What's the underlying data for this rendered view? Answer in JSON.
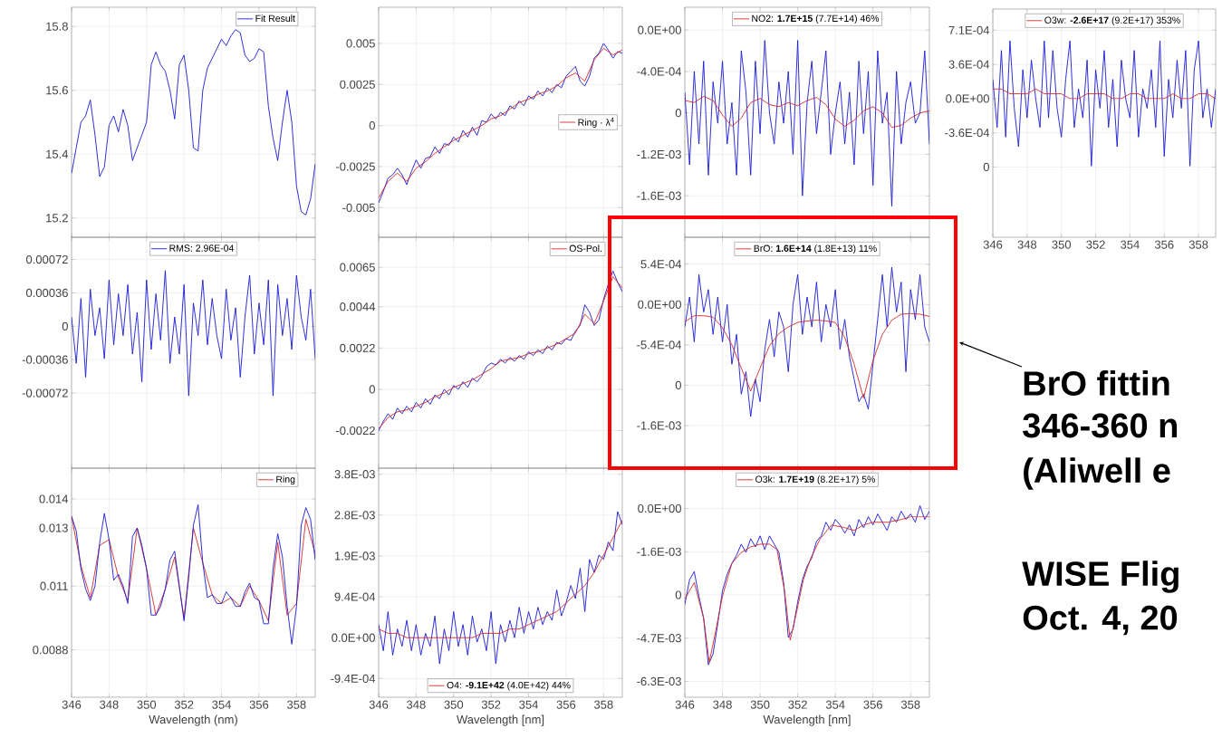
{
  "chart_data": [
    {
      "type": "line",
      "x": [
        346,
        346.25,
        346.5,
        346.75,
        347,
        347.25,
        347.5,
        347.75,
        348,
        348.25,
        348.5,
        348.75,
        349,
        349.25,
        349.5,
        349.75,
        350,
        350.25,
        350.5,
        350.75,
        351,
        351.25,
        351.5,
        351.75,
        352,
        352.25,
        352.5,
        352.75,
        353,
        353.25,
        353.5,
        353.75,
        354,
        354.25,
        354.5,
        354.75,
        355,
        355.25,
        355.5,
        355.75,
        356,
        356.25,
        356.5,
        356.75,
        357,
        357.25,
        357.5,
        357.75,
        358,
        358.25,
        358.5,
        358.75,
        359
      ],
      "xlim": [
        346,
        359
      ],
      "xticks": [
        346,
        348,
        350,
        352,
        354,
        356,
        358
      ],
      "ylim": [
        15.14,
        15.86
      ],
      "yticks": [
        15.2,
        15.4,
        15.6,
        15.8
      ],
      "grid": true,
      "legend": "top right",
      "tick_labels": "y",
      "series": [
        {
          "name": "Fit Result",
          "color": "#1a1ad2",
          "values": [
            15.34,
            15.42,
            15.5,
            15.52,
            15.57,
            15.46,
            15.33,
            15.36,
            15.49,
            15.52,
            15.47,
            15.54,
            15.49,
            15.38,
            15.42,
            15.46,
            15.5,
            15.68,
            15.72,
            15.68,
            15.66,
            15.6,
            15.51,
            15.68,
            15.71,
            15.6,
            15.42,
            15.41,
            15.6,
            15.67,
            15.7,
            15.73,
            15.76,
            15.74,
            15.77,
            15.79,
            15.78,
            15.71,
            15.69,
            15.7,
            15.73,
            15.72,
            15.55,
            15.45,
            15.38,
            15.5,
            15.6,
            15.5,
            15.3,
            15.22,
            15.21,
            15.26,
            15.37
          ]
        }
      ]
    },
    {
      "type": "line",
      "x": [
        346,
        346.25,
        346.5,
        346.75,
        347,
        347.25,
        347.5,
        347.75,
        348,
        348.25,
        348.5,
        348.75,
        349,
        349.25,
        349.5,
        349.75,
        350,
        350.25,
        350.5,
        350.75,
        351,
        351.25,
        351.5,
        351.75,
        352,
        352.25,
        352.5,
        352.75,
        353,
        353.25,
        353.5,
        353.75,
        354,
        354.25,
        354.5,
        354.75,
        355,
        355.25,
        355.5,
        355.75,
        356,
        356.25,
        356.5,
        356.75,
        357,
        357.25,
        357.5,
        357.75,
        358,
        358.25,
        358.5,
        358.75,
        359
      ],
      "xlim": [
        346,
        359
      ],
      "xticks": [
        346,
        348,
        350,
        352,
        354,
        356,
        358
      ],
      "ylim": [
        -0.0068,
        0.0072
      ],
      "yticks": [
        -0.005,
        -0.0025,
        0,
        0.0025,
        0.005
      ],
      "grid": true,
      "legend": "right",
      "tick_labels": "y",
      "series": [
        {
          "color": "#1a1ad2",
          "values": [
            -0.0047,
            -0.004,
            -0.0032,
            -0.003,
            -0.0026,
            -0.003,
            -0.0036,
            -0.0028,
            -0.0021,
            -0.0026,
            -0.002,
            -0.0019,
            -0.0013,
            -0.0017,
            -0.0011,
            -0.0012,
            -0.0007,
            -0.001,
            -0.0003,
            -0.0007,
            -0.0001,
            -0.0006,
            0.0003,
            0.0002,
            0.0007,
            0.0004,
            0.0008,
            0.0006,
            0.0012,
            0.001,
            0.0015,
            0.0012,
            0.0018,
            0.0016,
            0.0021,
            0.0018,
            0.0023,
            0.002,
            0.0025,
            0.0023,
            0.003,
            0.0033,
            0.0036,
            0.0027,
            0.0024,
            0.003,
            0.0041,
            0.0044,
            0.005,
            0.0046,
            0.0041,
            0.0045,
            0.0044
          ]
        },
        {
          "name": "Ring · λ$^{4}$",
          "color": "#d42a2a",
          "x": [
            346,
            346.5,
            347,
            347.5,
            348,
            348.5,
            349,
            349.5,
            350,
            350.5,
            351,
            351.5,
            352,
            352.5,
            353,
            353.5,
            354,
            354.5,
            355,
            355.5,
            356,
            356.5,
            357,
            357.5,
            358,
            358.5,
            359
          ],
          "values": [
            -0.0044,
            -0.0034,
            -0.0029,
            -0.0034,
            -0.0026,
            -0.0022,
            -0.0017,
            -0.0013,
            -0.0009,
            -0.0006,
            -0.0003,
            0,
            0.0004,
            0.0006,
            0.001,
            0.0014,
            0.0016,
            0.0019,
            0.0021,
            0.0024,
            0.0029,
            0.0032,
            0.0027,
            0.004,
            0.0047,
            0.0043,
            0.0046
          ]
        }
      ]
    },
    {
      "type": "line",
      "x": [
        346,
        346.25,
        346.5,
        346.75,
        347,
        347.25,
        347.5,
        347.75,
        348,
        348.25,
        348.5,
        348.75,
        349,
        349.25,
        349.5,
        349.75,
        350,
        350.25,
        350.5,
        350.75,
        351,
        351.25,
        351.5,
        351.75,
        352,
        352.25,
        352.5,
        352.75,
        353,
        353.25,
        353.5,
        353.75,
        354,
        354.25,
        354.5,
        354.75,
        355,
        355.25,
        355.5,
        355.75,
        356,
        356.25,
        356.5,
        356.75,
        357,
        357.25,
        357.5,
        357.75,
        358,
        358.25,
        358.5,
        358.75,
        359
      ],
      "xlim": [
        346,
        359
      ],
      "xticks": [
        346,
        348,
        350,
        352,
        354,
        356,
        358
      ],
      "ylim": [
        -0.002,
        0.00022
      ],
      "yticks": [
        {
          "value": 0,
          "label": "0.0E+00"
        },
        {
          "value": -0.0004,
          "label": "-4.0E-04"
        },
        {
          "value": -0.0008,
          "label": "0"
        },
        {
          "value": -0.0012,
          "label": "-1.2E-03"
        },
        {
          "value": -0.0016,
          "label": "-1.6E-03"
        }
      ],
      "grid": true,
      "legend": "top",
      "tick_labels": "y",
      "series": [
        {
          "color": "#1a1ad2",
          "values": [
            -0.0006,
            -0.0013,
            -0.0004,
            -0.0011,
            -0.0003,
            -0.0014,
            -0.0005,
            -0.0009,
            -0.0003,
            -0.0011,
            -0.0007,
            -0.0014,
            -0.0002,
            -0.0006,
            -0.0014,
            -0.0003,
            -0.001,
            -0.0001,
            -0.0008,
            -0.0011,
            -0.0005,
            -0.0009,
            -0.0004,
            -0.0012,
            -0.0001,
            -0.0016,
            -0.0007,
            -0.0003,
            -0.001,
            -0.0006,
            -0.0002,
            -0.0012,
            -0.0008,
            -0.0005,
            -0.0011,
            -0.0006,
            -0.0013,
            -0.0003,
            -0.001,
            -0.0004,
            -0.0015,
            -0.0002,
            -0.0009,
            -0.0006,
            -0.0017,
            -0.0004,
            -0.0011,
            -0.0007,
            -0.0005,
            -0.0009,
            -0.0008,
            -0.0002,
            -0.0011
          ]
        },
        {
          "name": "NO2: **1.7E+15** (7.7E+14) 46%",
          "color": "#d42a2a",
          "x": [
            346,
            346.5,
            347,
            347.5,
            348,
            348.5,
            349,
            349.5,
            350,
            350.5,
            351,
            351.5,
            352,
            352.5,
            353,
            353.5,
            354,
            354.5,
            355,
            355.5,
            356,
            356.5,
            357,
            357.5,
            358,
            358.5,
            359
          ],
          "values": [
            -0.00068,
            -0.0007,
            -0.00064,
            -0.00068,
            -0.00082,
            -0.00093,
            -0.00085,
            -0.0007,
            -0.00066,
            -0.00072,
            -0.00074,
            -0.0007,
            -0.00073,
            -0.00068,
            -0.00065,
            -0.00072,
            -0.00086,
            -0.00093,
            -0.00087,
            -0.00078,
            -0.00074,
            -0.0008,
            -0.00094,
            -0.00092,
            -0.00085,
            -0.0008,
            -0.00078
          ]
        }
      ]
    },
    {
      "type": "line",
      "x": [
        346,
        346.25,
        346.5,
        346.75,
        347,
        347.25,
        347.5,
        347.75,
        348,
        348.25,
        348.5,
        348.75,
        349,
        349.25,
        349.5,
        349.75,
        350,
        350.25,
        350.5,
        350.75,
        351,
        351.25,
        351.5,
        351.75,
        352,
        352.25,
        352.5,
        352.75,
        353,
        353.25,
        353.5,
        353.75,
        354,
        354.25,
        354.5,
        354.75,
        355,
        355.25,
        355.5,
        355.75,
        356,
        356.25,
        356.5,
        356.75,
        357,
        357.25,
        357.5,
        357.75,
        358,
        358.25,
        358.5,
        358.75,
        359
      ],
      "xlim": [
        346,
        359
      ],
      "xticks": [
        346,
        348,
        350,
        352,
        354,
        356,
        358
      ],
      "ylim": [
        -0.00144,
        0.00093
      ],
      "yticks": [
        {
          "value": 0.00071,
          "label": "7.1E-04"
        },
        {
          "value": 0.000355,
          "label": "3.6E-04"
        },
        {
          "value": 0,
          "label": "0.0E+00"
        },
        {
          "value": -0.000355,
          "label": "-3.6E-04"
        },
        {
          "value": -0.00071,
          "label": "0"
        }
      ],
      "grid": true,
      "legend": "top",
      "series": [
        {
          "color": "#1a1ad2",
          "values": [
            0.0002,
            -0.0003,
            0.0005,
            -0.0004,
            0.0006,
            -0.0001,
            -0.0005,
            0.0003,
            -0.0002,
            0.0004,
            0,
            -0.0003,
            0.0006,
            -0.0002,
            0.0005,
            -0.0001,
            -0.0004,
            0.0002,
            0.0006,
            -0.0003,
            0.0001,
            -0.0002,
            0.0004,
            -0.0007,
            0.0003,
            -0.0001,
            0.0005,
            -0.0003,
            0.0002,
            -0.0005,
            0.0004,
            0,
            -0.0002,
            0.0005,
            -0.0004,
            0.0001,
            -0.0001,
            0.0003,
            -0.0003,
            0.0006,
            -0.0006,
            0.0002,
            -0.0002,
            0.0004,
            -0.0001,
            0.0005,
            -0.0007,
            0.0003,
            0.0006,
            -0.0002,
            0.0001,
            -0.0003,
            0.0001
          ]
        },
        {
          "name": "O3w: **-2.6E+17** (9.2E+17) 353%",
          "color": "#d42a2a",
          "x": [
            346,
            346.5,
            347,
            347.5,
            348,
            348.5,
            349,
            349.5,
            350,
            350.5,
            351,
            351.5,
            352,
            352.5,
            353,
            353.5,
            354,
            354.5,
            355,
            355.5,
            356,
            356.5,
            357,
            357.5,
            358,
            358.5,
            359
          ],
          "values": [
            0.0001,
            0.0001,
            5e-05,
            5e-05,
            5e-05,
            0.0001,
            5e-05,
            5e-05,
            5e-05,
            0,
            0,
            5e-05,
            5e-05,
            5e-05,
            0,
            0,
            5e-05,
            5e-05,
            0,
            0,
            0,
            5e-05,
            0,
            0,
            5e-05,
            5e-05,
            0
          ]
        }
      ]
    },
    {
      "type": "line",
      "x": [
        346,
        346.25,
        346.5,
        346.75,
        347,
        347.25,
        347.5,
        347.75,
        348,
        348.25,
        348.5,
        348.75,
        349,
        349.25,
        349.5,
        349.75,
        350,
        350.25,
        350.5,
        350.75,
        351,
        351.25,
        351.5,
        351.75,
        352,
        352.25,
        352.5,
        352.75,
        353,
        353.25,
        353.5,
        353.75,
        354,
        354.25,
        354.5,
        354.75,
        355,
        355.25,
        355.5,
        355.75,
        356,
        356.25,
        356.5,
        356.75,
        357,
        357.25,
        357.5,
        357.75,
        358,
        358.25,
        358.5,
        358.75,
        359
      ],
      "xlim": [
        346,
        359
      ],
      "xticks": [
        346,
        348,
        350,
        352,
        354,
        356,
        358
      ],
      "ylim": [
        -0.00153,
        0.00096
      ],
      "yticks": [
        0.00072,
        0.00036,
        0,
        -0.00036,
        -0.00072
      ],
      "grid": true,
      "legend": "top",
      "tick_labels": "y",
      "series": [
        {
          "name": "RMS: 2.96E-04",
          "color": "#1a1ad2",
          "values": [
            0.0001,
            -0.0004,
            0.0003,
            -0.00055,
            0.0004,
            -0.0001,
            0.0002,
            -0.00035,
            0.0005,
            -0.0002,
            0.00035,
            -0.0001,
            0.00045,
            -0.0003,
            0.00015,
            -0.0006,
            0.0005,
            -0.00025,
            0.00035,
            -0.00015,
            0.0006,
            -0.0004,
            0.0001,
            -0.0003,
            0.00045,
            -0.00075,
            0.00025,
            -0.0001,
            0.0005,
            -0.0002,
            0.0003,
            -0.0001,
            -0.00035,
            0.0004,
            -0.00015,
            0.0002,
            -0.00055,
            0.0001,
            0.00055,
            -0.0003,
            0.00025,
            -0.0002,
            0.0005,
            -0.00075,
            0.00045,
            -0.0001,
            0.0003,
            -0.00025,
            0.00055,
            0.0001,
            -0.00015,
            0.0004,
            -0.00035
          ]
        }
      ]
    },
    {
      "type": "line",
      "x": [
        346,
        346.25,
        346.5,
        346.75,
        347,
        347.25,
        347.5,
        347.75,
        348,
        348.25,
        348.5,
        348.75,
        349,
        349.25,
        349.5,
        349.75,
        350,
        350.25,
        350.5,
        350.75,
        351,
        351.25,
        351.5,
        351.75,
        352,
        352.25,
        352.5,
        352.75,
        353,
        353.25,
        353.5,
        353.75,
        354,
        354.25,
        354.5,
        354.75,
        355,
        355.25,
        355.5,
        355.75,
        356,
        356.25,
        356.5,
        356.75,
        357,
        357.25,
        357.5,
        357.75,
        358,
        358.25,
        358.5,
        358.75,
        359
      ],
      "xlim": [
        346,
        359
      ],
      "xticks": [
        346,
        348,
        350,
        352,
        354,
        356,
        358
      ],
      "ylim": [
        -0.0042,
        0.0081
      ],
      "yticks": [
        0.0065,
        0.0044,
        0.0022,
        0,
        -0.0022
      ],
      "grid": true,
      "legend": "top right",
      "tick_labels": "y",
      "series": [
        {
          "color": "#1a1ad2",
          "values": [
            -0.0022,
            -0.0017,
            -0.0013,
            -0.0016,
            -0.001,
            -0.0013,
            -0.0009,
            -0.0012,
            -0.0007,
            -0.001,
            -0.0005,
            -0.0008,
            -0.0003,
            -0.0005,
            0,
            -0.0003,
            0.0002,
            0,
            0.0004,
            0.0001,
            0.0006,
            0.0004,
            0.0007,
            0.0012,
            0.0014,
            0.0013,
            0.0016,
            0.0014,
            0.0017,
            0.0015,
            0.0018,
            0.0016,
            0.002,
            0.0018,
            0.0021,
            0.0019,
            0.0023,
            0.0021,
            0.0025,
            0.0024,
            0.0027,
            0.0026,
            0.0031,
            0.0034,
            0.0045,
            0.0041,
            0.0034,
            0.0037,
            0.0048,
            0.0056,
            0.0063,
            0.0057,
            0.0052
          ]
        },
        {
          "name": "OS-Pol.",
          "color": "#d42a2a",
          "x": [
            346,
            346.5,
            347,
            347.5,
            348,
            348.5,
            349,
            349.5,
            350,
            350.5,
            351,
            351.5,
            352,
            352.5,
            353,
            353.5,
            354,
            354.5,
            355,
            355.5,
            356,
            356.5,
            357,
            357.5,
            358,
            358.5,
            359
          ],
          "values": [
            -0.0021,
            -0.0015,
            -0.0012,
            -0.0011,
            -0.0009,
            -0.0007,
            -0.0004,
            -0.0002,
            0.0001,
            0.0003,
            0.0005,
            0.0008,
            0.0011,
            0.0015,
            0.0016,
            0.0017,
            0.0019,
            0.002,
            0.0022,
            0.0024,
            0.0027,
            0.003,
            0.004,
            0.0035,
            0.0047,
            0.006,
            0.0054
          ]
        }
      ]
    },
    {
      "type": "line",
      "x": [
        346,
        346.25,
        346.5,
        346.75,
        347,
        347.25,
        347.5,
        347.75,
        348,
        348.25,
        348.5,
        348.75,
        349,
        349.25,
        349.5,
        349.75,
        350,
        350.25,
        350.5,
        350.75,
        351,
        351.25,
        351.5,
        351.75,
        352,
        352.25,
        352.5,
        352.75,
        353,
        353.25,
        353.5,
        353.75,
        354,
        354.25,
        354.5,
        354.75,
        355,
        355.25,
        355.5,
        355.75,
        356,
        356.25,
        356.5,
        356.75,
        357,
        357.25,
        357.5,
        357.75,
        358,
        358.25,
        358.5,
        358.75,
        359
      ],
      "xlim": [
        346,
        359
      ],
      "xticks": [
        346,
        348,
        350,
        352,
        354,
        356,
        358
      ],
      "ylim": [
        -0.00219,
        0.0009
      ],
      "yticks": [
        {
          "value": 0.00054,
          "label": "5.4E-04"
        },
        {
          "value": 0,
          "label": "0.0E+00"
        },
        {
          "value": -0.00054,
          "label": "-5.4E-04"
        },
        {
          "value": -0.00108,
          "label": "0"
        },
        {
          "value": -0.00162,
          "label": "-1.6E-03"
        }
      ],
      "grid": true,
      "legend": "top",
      "tick_labels": "y",
      "annotations": [
        "BrO fittin",
        "346-360 n",
        "(Aliwell e",
        "WISE Flig",
        "Oct. 4, 20"
      ],
      "series": [
        {
          "color": "#1a1ad2",
          "values": [
            -0.0003,
            0.0001,
            -0.0005,
            0.0004,
            -0.0001,
            0.0002,
            -0.0004,
            0.0001,
            -0.0005,
            0,
            -0.0008,
            -0.0004,
            -0.0012,
            -0.0009,
            -0.0015,
            -0.001,
            -0.0013,
            -0.0006,
            -0.0002,
            -0.0007,
            -0.0001,
            -0.0003,
            -0.0009,
            0,
            0.0004,
            -0.0004,
            0.0001,
            -0.0003,
            0.0003,
            -0.0005,
            0,
            -0.0003,
            0.0002,
            -0.0006,
            -0.0002,
            -0.0007,
            -0.001,
            -0.0013,
            -0.0012,
            -0.0014,
            -0.0008,
            -0.0002,
            0.0004,
            -0.0003,
            0.0005,
            -0.0001,
            0.0003,
            -0.0009,
            0.0002,
            -0.0002,
            0.0004,
            -0.0003,
            -0.0005
          ]
        },
        {
          "name": "BrO: **1.6E+14** (1.8E+13) 11%",
          "color": "#d42a2a",
          "x": [
            346,
            346.5,
            347,
            347.5,
            348,
            348.5,
            349,
            349.5,
            350,
            350.5,
            351,
            351.5,
            352,
            352.5,
            353,
            353.5,
            354,
            354.5,
            355,
            355.5,
            356,
            356.5,
            357,
            357.5,
            358,
            358.5,
            359
          ],
          "values": [
            -0.00023,
            -0.00015,
            -0.00015,
            -0.00017,
            -0.00031,
            -0.00054,
            -0.00085,
            -0.00116,
            -0.00085,
            -0.00055,
            -0.00039,
            -0.0003,
            -0.00024,
            -0.00022,
            -0.00021,
            -0.00022,
            -0.00024,
            -0.00044,
            -0.0008,
            -0.00125,
            -0.00075,
            -0.0004,
            -0.00021,
            -0.00013,
            -0.00012,
            -0.00013,
            -0.00016
          ]
        }
      ]
    },
    {
      "type": "line",
      "x": [
        346,
        346.25,
        346.5,
        346.75,
        347,
        347.25,
        347.5,
        347.75,
        348,
        348.25,
        348.5,
        348.75,
        349,
        349.25,
        349.5,
        349.75,
        350,
        350.25,
        350.5,
        350.75,
        351,
        351.25,
        351.5,
        351.75,
        352,
        352.25,
        352.5,
        352.75,
        353,
        353.25,
        353.5,
        353.75,
        354,
        354.25,
        354.5,
        354.75,
        355,
        355.25,
        355.5,
        355.75,
        356,
        356.25,
        356.5,
        356.75,
        357,
        357.25,
        357.5,
        357.75,
        358,
        358.25,
        358.5,
        358.75,
        359
      ],
      "xlim": [
        346,
        359
      ],
      "xticks": [
        346,
        348,
        350,
        352,
        354,
        356,
        358
      ],
      "xlabel": "Wavelength (nm)",
      "ylim": [
        0.00717,
        0.01506
      ],
      "yticks": [
        0.014,
        0.013,
        0.011,
        0.0088
      ],
      "grid": true,
      "legend": "top right",
      "series": [
        {
          "name": "Ring",
          "color": "#d42a2a",
          "x": [
            346,
            346.5,
            347,
            347.5,
            348,
            348.5,
            349,
            349.5,
            350,
            350.5,
            351,
            351.5,
            352,
            352.5,
            353,
            353.5,
            354,
            354.5,
            355,
            355.5,
            356,
            356.5,
            357,
            357.5,
            358,
            358.5,
            359
          ],
          "values": [
            0.0134,
            0.0117,
            0.0106,
            0.0124,
            0.0126,
            0.0113,
            0.0105,
            0.013,
            0.0116,
            0.01,
            0.0109,
            0.012,
            0.0099,
            0.013,
            0.0118,
            0.0107,
            0.0104,
            0.0106,
            0.0103,
            0.011,
            0.0105,
            0.0098,
            0.0125,
            0.01,
            0.0104,
            0.0133,
            0.0121
          ]
        },
        {
          "color": "#1a1ad2",
          "values": [
            0.0134,
            0.0129,
            0.0116,
            0.0109,
            0.0105,
            0.011,
            0.0125,
            0.0135,
            0.0126,
            0.0112,
            0.0114,
            0.011,
            0.0104,
            0.0127,
            0.013,
            0.0124,
            0.0116,
            0.01,
            0.01,
            0.0103,
            0.0109,
            0.0119,
            0.0122,
            0.011,
            0.0098,
            0.0113,
            0.0131,
            0.0138,
            0.0118,
            0.0106,
            0.0107,
            0.0104,
            0.0104,
            0.0108,
            0.0106,
            0.0103,
            0.0103,
            0.0108,
            0.0111,
            0.0106,
            0.0105,
            0.0097,
            0.0097,
            0.0116,
            0.0128,
            0.012,
            0.0103,
            0.009,
            0.0103,
            0.0131,
            0.0137,
            0.0133,
            0.0119
          ]
        }
      ]
    },
    {
      "type": "line",
      "x": [
        346,
        346.25,
        346.5,
        346.75,
        347,
        347.25,
        347.5,
        347.75,
        348,
        348.25,
        348.5,
        348.75,
        349,
        349.25,
        349.5,
        349.75,
        350,
        350.25,
        350.5,
        350.75,
        351,
        351.25,
        351.5,
        351.75,
        352,
        352.25,
        352.5,
        352.75,
        353,
        353.25,
        353.5,
        353.75,
        354,
        354.25,
        354.5,
        354.75,
        355,
        355.25,
        355.5,
        355.75,
        356,
        356.25,
        356.5,
        356.75,
        357,
        357.25,
        357.5,
        357.75,
        358,
        358.25,
        358.5,
        358.75,
        359
      ],
      "xlim": [
        346,
        359
      ],
      "xticks": [
        346,
        348,
        350,
        352,
        354,
        356,
        358
      ],
      "xlabel": "Wavelength [nm]",
      "ylim": [
        -0.00137,
        0.0039
      ],
      "yticks": [
        {
          "value": 0.00376,
          "label": "3.8E-03"
        },
        {
          "value": 0.00282,
          "label": "2.8E-03"
        },
        {
          "value": 0.00188,
          "label": "1.9E-03"
        },
        {
          "value": 0.00094,
          "label": "9.4E-04"
        },
        {
          "value": 0,
          "label": "0.0E+00"
        },
        {
          "value": -0.00094,
          "label": "-9.4E-04"
        }
      ],
      "grid": true,
      "legend": "bottom",
      "series": [
        {
          "color": "#1a1ad2",
          "values": [
            0.0003,
            -0.0003,
            0.0006,
            -0.0004,
            0.0002,
            -0.0002,
            0.0004,
            -0.0003,
            0.0003,
            -0.0004,
            0.0001,
            -0.0002,
            0.0005,
            -0.0006,
            0.0002,
            -0.0003,
            0.0006,
            -0.0002,
            0.0003,
            -0.0004,
            0.0005,
            -0.0001,
            0.0002,
            -0.0003,
            0.0006,
            -0.0006,
            0.0003,
            -0.0001,
            0.0004,
            0,
            0.0007,
            0.0001,
            0.0006,
            0.0002,
            0.0007,
            0.0003,
            0.0006,
            0.0004,
            0.0011,
            0.0005,
            0.0008,
            0.0012,
            0.0009,
            0.0016,
            0.0006,
            0.0018,
            0.0015,
            0.0019,
            0.0018,
            0.0022,
            0.002,
            0.0029,
            0.0026
          ]
        },
        {
          "name": "O4: **-9.1E+42** (4.0E+42) 44%",
          "color": "#d42a2a",
          "x": [
            346,
            346.5,
            347,
            347.5,
            348,
            348.5,
            349,
            349.5,
            350,
            350.5,
            351,
            351.5,
            352,
            352.5,
            353,
            353.5,
            354,
            354.5,
            355,
            355.5,
            356,
            356.5,
            357,
            357.5,
            358,
            358.5,
            359
          ],
          "values": [
            0.0002,
            0.0001,
            0.0001,
            0,
            0,
            0,
            0,
            0,
            0,
            0,
            0,
            0.0001,
            0.0001,
            0.0001,
            0.0002,
            0.0002,
            0.0003,
            0.0004,
            0.0005,
            0.0006,
            0.0008,
            0.001,
            0.0012,
            0.0015,
            0.0019,
            0.0023,
            0.0027
          ]
        }
      ]
    },
    {
      "type": "line",
      "x": [
        346,
        346.25,
        346.5,
        346.75,
        347,
        347.25,
        347.5,
        347.75,
        348,
        348.25,
        348.5,
        348.75,
        349,
        349.25,
        349.5,
        349.75,
        350,
        350.25,
        350.5,
        350.75,
        351,
        351.25,
        351.5,
        351.75,
        352,
        352.25,
        352.5,
        352.75,
        353,
        353.25,
        353.5,
        353.75,
        354,
        354.25,
        354.5,
        354.75,
        355,
        355.25,
        355.5,
        355.75,
        356,
        356.25,
        356.5,
        356.75,
        357,
        357.25,
        357.5,
        357.75,
        358,
        358.25,
        358.5,
        358.75,
        359
      ],
      "xlim": [
        346,
        359
      ],
      "xticks": [
        346,
        348,
        350,
        352,
        354,
        356,
        358
      ],
      "xlabel": "Wavelength [nm]",
      "ylim": [
        -0.00688,
        0.00147
      ],
      "yticks": [
        {
          "value": 0,
          "label": "0.0E+00"
        },
        {
          "value": -0.001575,
          "label": "-1.6E-03"
        },
        {
          "value": -0.00315,
          "label": "0"
        },
        {
          "value": -0.004725,
          "label": "-4.7E-03"
        },
        {
          "value": -0.0063,
          "label": "-6.3E-03"
        }
      ],
      "grid": true,
      "legend": "top",
      "series": [
        {
          "color": "#1a1ad2",
          "values": [
            -0.0035,
            -0.0026,
            -0.0023,
            -0.0032,
            -0.004,
            -0.0057,
            -0.0053,
            -0.0042,
            -0.003,
            -0.0024,
            -0.002,
            -0.0017,
            -0.0013,
            -0.0016,
            -0.0011,
            -0.0014,
            -0.001,
            -0.0015,
            -0.001,
            -0.0013,
            -0.0016,
            -0.0027,
            -0.0047,
            -0.0044,
            -0.0034,
            -0.0026,
            -0.0021,
            -0.0018,
            -0.0012,
            -0.001,
            -0.0005,
            -0.0008,
            -0.0004,
            -0.0006,
            -0.0009,
            -0.0006,
            -0.001,
            -0.0004,
            -0.0007,
            -0.0003,
            -0.0006,
            -0.0002,
            -0.0005,
            -0.0008,
            -0.0003,
            -0.0005,
            -0.0001,
            -0.0004,
            -0.0002,
            -0.0005,
            0.0001,
            -0.0004,
            -0.0001
          ]
        },
        {
          "name": "O3k: **1.7E+19** (8.2E+17) 5%",
          "color": "#d42a2a",
          "x": [
            346,
            346.5,
            347,
            347.3,
            347.6,
            348,
            348.5,
            349,
            349.5,
            350,
            350.5,
            350.9,
            351.3,
            351.6,
            351.9,
            352.3,
            352.7,
            353.2,
            353.8,
            354.5,
            355,
            355.5,
            356,
            356.8,
            357.5,
            358,
            359
          ],
          "values": [
            -0.0033,
            -0.0027,
            -0.004,
            -0.0056,
            -0.0046,
            -0.0032,
            -0.002,
            -0.0016,
            -0.0014,
            -0.0013,
            -0.0013,
            -0.0015,
            -0.003,
            -0.0048,
            -0.0039,
            -0.0026,
            -0.0018,
            -0.0011,
            -0.0006,
            -0.0007,
            -0.0008,
            -0.0006,
            -0.0005,
            -0.0005,
            -0.0004,
            -0.0003,
            -0.0003
          ]
        }
      ]
    }
  ]
}
